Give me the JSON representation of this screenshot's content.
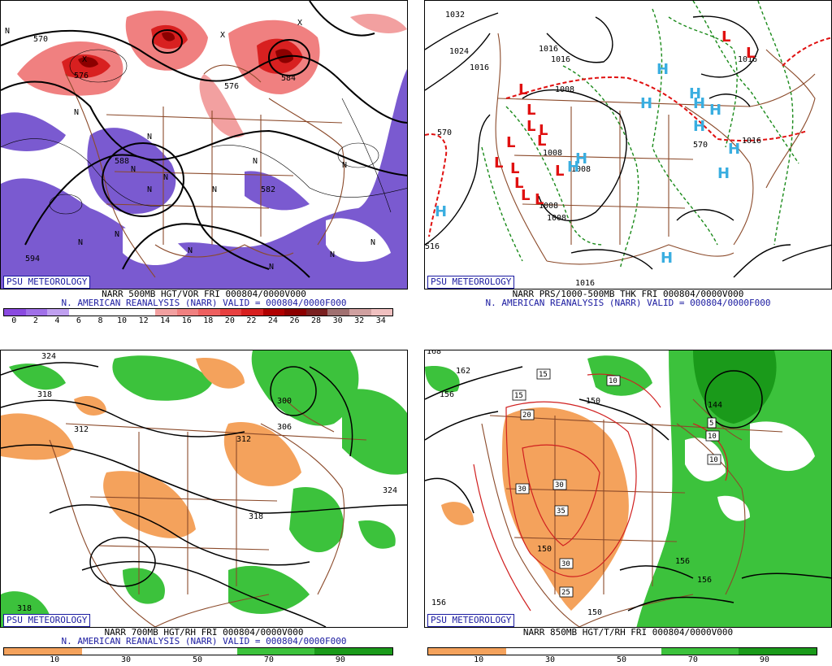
{
  "credit": "PSU METEOROLOGY",
  "reanalysis_line": "N. AMERICAN REANALYSIS (NARR) VALID = 000804/0000F000",
  "colors": {
    "border": "#8b4a2a",
    "credit_blue": "#1a1aa0",
    "positive_vort": "#e0303a",
    "negative_vort": "#7a5ad0",
    "dry": "#f4a25c",
    "moist": "#3cc23c",
    "high": "#3aaee0",
    "low": "#e01010"
  },
  "panels": [
    {
      "id": "500mb",
      "caption": "NARR 500MB HGT/VOR FRI 000804/0000V000",
      "legend": {
        "ticks": [
          "0",
          "2",
          "4",
          "6",
          "8",
          "10",
          "12",
          "14",
          "16",
          "18",
          "20",
          "22",
          "24",
          "26",
          "28",
          "30",
          "32",
          "34"
        ],
        "colors": [
          "#8a4ae0",
          "#a070e8",
          "#c0a0f0",
          "#ffffff",
          "#ffffff",
          "#ffffff",
          "#ffffff",
          "#f2a0a0",
          "#f08080",
          "#ee6060",
          "#e84040",
          "#d82020",
          "#b00000",
          "#8c0000",
          "#7a2020",
          "#a07070",
          "#d0a0a0",
          "#f0c0c0"
        ]
      },
      "labels": [
        "576",
        "570",
        "584",
        "576",
        "582",
        "588",
        "594"
      ],
      "n_marks": [
        "N",
        "N",
        "N",
        "N",
        "N",
        "N",
        "N",
        "N",
        "N",
        "N",
        "N",
        "N",
        "N",
        "N",
        "N"
      ],
      "x_marks": [
        "X",
        "X",
        "X"
      ]
    },
    {
      "id": "sfc",
      "caption": "NARR PRS/1000-500MB THK FRI 000804/0000V000",
      "labels": [
        "1032",
        "1024",
        "1016",
        "1016",
        "1016",
        "1008",
        "1008",
        "1008",
        "1008",
        "1016",
        "1016",
        "570",
        "570",
        "516",
        "1008",
        "1016"
      ],
      "highs": [
        "H",
        "H",
        "H",
        "H",
        "H",
        "H",
        "H",
        "H",
        "H",
        "H",
        "H",
        "H"
      ],
      "lows": [
        "L",
        "L",
        "L",
        "L",
        "L",
        "L",
        "L",
        "L",
        "L",
        "L",
        "L",
        "L",
        "L",
        "L"
      ]
    },
    {
      "id": "700mb",
      "caption": "NARR 700MB HGT/RH FRI 000804/0000V000",
      "legend": {
        "ticks": [
          "10",
          "30",
          "50",
          "70",
          "90"
        ],
        "colors": [
          "#f4a25c",
          "#ffffff",
          "#ffffff",
          "#3cc23c",
          "#1a9a1a"
        ]
      },
      "labels": [
        "324",
        "318",
        "312",
        "300",
        "306",
        "312",
        "324",
        "318",
        "318"
      ]
    },
    {
      "id": "850mb",
      "caption": "NARR 850MB HGT/T/RH FRI 000804/0000V000",
      "legend": {
        "ticks": [
          "10",
          "30",
          "50",
          "70",
          "90"
        ],
        "colors": [
          "#f4a25c",
          "#ffffff",
          "#ffffff",
          "#3cc23c",
          "#1a9a1a"
        ]
      },
      "labels": [
        "168",
        "162",
        "156",
        "150",
        "144",
        "150",
        "156",
        "156",
        "150",
        "156"
      ],
      "temp_boxes": [
        "15",
        "15",
        "20",
        "10",
        "5",
        "10",
        "10",
        "30",
        "30",
        "35",
        "30",
        "25"
      ]
    }
  ]
}
